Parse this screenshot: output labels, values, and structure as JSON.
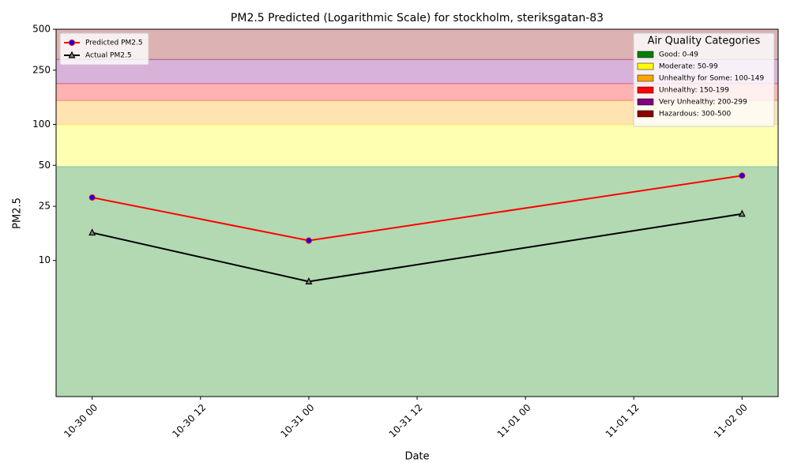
{
  "chart_data": {
    "type": "line",
    "title": "PM2.5 Predicted (Logarithmic Scale) for stockholm, steriksgatan-83",
    "xlabel": "Date",
    "ylabel": "PM2.5",
    "x": [
      "10-30 00",
      "10-31 00",
      "11-02 00"
    ],
    "xlim": [
      "10-29 20",
      "11-02 04"
    ],
    "xticks": [
      "10-30 00",
      "10-30 12",
      "10-31 00",
      "10-31 12",
      "11-01 00",
      "11-01 12",
      "11-02 00"
    ],
    "yscale": "log",
    "ylim": [
      1,
      500
    ],
    "yticks": [
      10,
      25,
      50,
      100,
      250,
      500
    ],
    "series": [
      {
        "name": "Predicted PM2.5",
        "color": "#ff0000",
        "marker": "circle",
        "marker_color": "#0000ff",
        "values": [
          29,
          14,
          42
        ]
      },
      {
        "name": "Actual PM2.5",
        "color": "#000000",
        "marker": "triangle",
        "marker_color": "#808080",
        "values": [
          16,
          7,
          22
        ]
      }
    ],
    "legend_loc": "upper left",
    "bands_title": "Air Quality Categories",
    "bands_loc": "upper right",
    "band_opacity": 0.3,
    "bands": [
      {
        "label": "Good: 0-49",
        "lo": 0,
        "hi": 49,
        "color": "#008000"
      },
      {
        "label": "Moderate: 50-99",
        "lo": 50,
        "hi": 99,
        "color": "#ffff00"
      },
      {
        "label": "Unhealthy for Some: 100-149",
        "lo": 100,
        "hi": 149,
        "color": "#ffa500"
      },
      {
        "label": "Unhealthy: 150-199",
        "lo": 150,
        "hi": 199,
        "color": "#ff0000"
      },
      {
        "label": "Very Unhealthy: 200-299",
        "lo": 200,
        "hi": 299,
        "color": "#800080"
      },
      {
        "label": "Hazardous: 300-500",
        "lo": 300,
        "hi": 500,
        "color": "#8b0000"
      }
    ]
  }
}
